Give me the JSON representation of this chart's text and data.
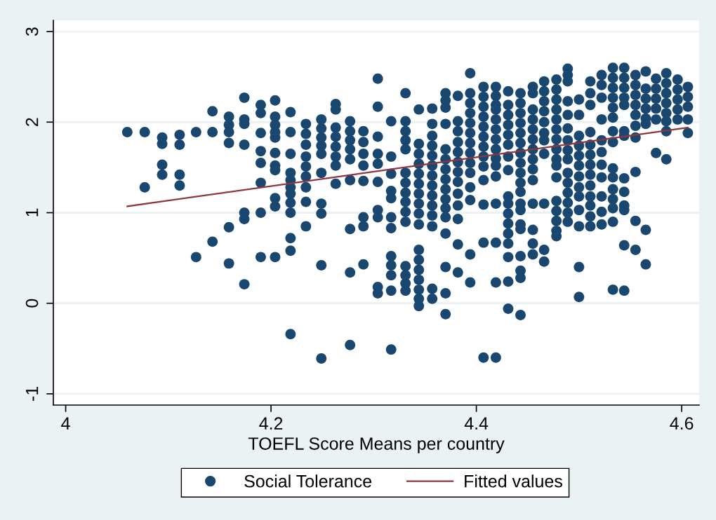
{
  "chart_data": {
    "type": "scatter",
    "xlabel": "TOEFL Score Means per country",
    "xlim": [
      3.988,
      4.617
    ],
    "ylim": [
      -1.124,
      3.124
    ],
    "xticks": [
      4,
      4.2,
      4.4,
      4.6
    ],
    "yticks": [
      -1,
      0,
      1,
      2,
      3
    ],
    "grid": "y",
    "legend": "bottom",
    "series": [
      {
        "name": "Social Tolerance",
        "color": "#1a476f",
        "marker": "circle",
        "x": [
          4.06,
          4.077,
          4.077,
          4.094,
          4.094,
          4.094,
          4.094,
          4.111,
          4.111,
          4.111,
          4.111,
          4.127,
          4.127,
          4.143,
          4.143,
          4.143,
          4.159,
          4.159,
          4.159,
          4.159,
          4.159,
          4.159,
          4.174,
          4.174,
          4.174,
          4.174,
          4.174,
          4.174,
          4.174,
          4.19,
          4.19,
          4.19,
          4.19,
          4.19,
          4.19,
          4.19,
          4.19,
          4.204,
          4.204,
          4.204,
          4.204,
          4.204,
          4.204,
          4.204,
          4.204,
          4.204,
          4.204,
          4.204,
          4.219,
          4.219,
          4.219,
          4.219,
          4.219,
          4.219,
          4.219,
          4.219,
          4.219,
          4.219,
          4.219,
          4.219,
          4.234,
          4.234,
          4.234,
          4.234,
          4.234,
          4.234,
          4.234,
          4.234,
          4.234,
          4.249,
          4.249,
          4.249,
          4.249,
          4.249,
          4.249,
          4.249,
          4.249,
          4.249,
          4.249,
          4.263,
          4.263,
          4.263,
          4.263,
          4.263,
          4.263,
          4.263,
          4.263,
          4.277,
          4.277,
          4.277,
          4.277,
          4.277,
          4.277,
          4.277,
          4.277,
          4.277,
          4.29,
          4.29,
          4.29,
          4.29,
          4.29,
          4.29,
          4.29,
          4.29,
          4.304,
          4.304,
          4.304,
          4.304,
          4.304,
          4.304,
          4.304,
          4.304,
          4.304,
          4.304,
          4.317,
          4.317,
          4.317,
          4.317,
          4.317,
          4.317,
          4.317,
          4.317,
          4.317,
          4.317,
          4.317,
          4.317,
          4.331,
          4.331,
          4.331,
          4.331,
          4.331,
          4.331,
          4.331,
          4.331,
          4.331,
          4.331,
          4.331,
          4.331,
          4.331,
          4.331,
          4.331,
          4.344,
          4.344,
          4.344,
          4.344,
          4.344,
          4.344,
          4.344,
          4.344,
          4.344,
          4.344,
          4.344,
          4.344,
          4.344,
          4.344,
          4.344,
          4.344,
          4.344,
          4.357,
          4.357,
          4.357,
          4.357,
          4.357,
          4.357,
          4.357,
          4.357,
          4.357,
          4.357,
          4.357,
          4.357,
          4.357,
          4.357,
          4.37,
          4.37,
          4.37,
          4.37,
          4.37,
          4.37,
          4.37,
          4.37,
          4.37,
          4.37,
          4.37,
          4.37,
          4.37,
          4.37,
          4.37,
          4.37,
          4.382,
          4.382,
          4.382,
          4.382,
          4.382,
          4.382,
          4.382,
          4.382,
          4.382,
          4.382,
          4.382,
          4.382,
          4.382,
          4.394,
          4.394,
          4.394,
          4.394,
          4.394,
          4.394,
          4.394,
          4.394,
          4.394,
          4.394,
          4.394,
          4.394,
          4.394,
          4.394,
          4.407,
          4.407,
          4.407,
          4.407,
          4.407,
          4.407,
          4.407,
          4.407,
          4.407,
          4.407,
          4.407,
          4.407,
          4.407,
          4.419,
          4.419,
          4.419,
          4.419,
          4.419,
          4.419,
          4.419,
          4.419,
          4.419,
          4.419,
          4.419,
          4.419,
          4.419,
          4.419,
          4.419,
          4.431,
          4.431,
          4.431,
          4.431,
          4.431,
          4.431,
          4.431,
          4.431,
          4.431,
          4.431,
          4.431,
          4.431,
          4.431,
          4.431,
          4.431,
          4.431,
          4.431,
          4.443,
          4.443,
          4.443,
          4.443,
          4.443,
          4.443,
          4.443,
          4.443,
          4.443,
          4.443,
          4.443,
          4.443,
          4.443,
          4.443,
          4.443,
          4.443,
          4.443,
          4.443,
          4.443,
          4.455,
          4.455,
          4.455,
          4.455,
          4.455,
          4.455,
          4.455,
          4.455,
          4.455,
          4.455,
          4.455,
          4.455,
          4.455,
          4.455,
          4.466,
          4.466,
          4.466,
          4.466,
          4.466,
          4.466,
          4.466,
          4.466,
          4.466,
          4.466,
          4.466,
          4.478,
          4.478,
          4.478,
          4.478,
          4.478,
          4.478,
          4.478,
          4.478,
          4.478,
          4.478,
          4.478,
          4.478,
          4.478,
          4.478,
          4.478,
          4.478,
          4.489,
          4.489,
          4.489,
          4.489,
          4.489,
          4.489,
          4.489,
          4.489,
          4.489,
          4.489,
          4.489,
          4.489,
          4.489,
          4.489,
          4.489,
          4.5,
          4.5,
          4.5,
          4.5,
          4.5,
          4.5,
          4.5,
          4.5,
          4.5,
          4.5,
          4.5,
          4.5,
          4.5,
          4.511,
          4.511,
          4.511,
          4.511,
          4.511,
          4.511,
          4.511,
          4.511,
          4.511,
          4.511,
          4.511,
          4.511,
          4.511,
          4.522,
          4.522,
          4.522,
          4.522,
          4.522,
          4.522,
          4.522,
          4.522,
          4.522,
          4.522,
          4.522,
          4.533,
          4.533,
          4.533,
          4.533,
          4.533,
          4.533,
          4.533,
          4.533,
          4.533,
          4.533,
          4.533,
          4.533,
          4.533,
          4.533,
          4.533,
          4.544,
          4.544,
          4.544,
          4.544,
          4.544,
          4.544,
          4.544,
          4.544,
          4.544,
          4.544,
          4.544,
          4.544,
          4.544,
          4.555,
          4.555,
          4.555,
          4.555,
          4.555,
          4.555,
          4.555,
          4.555,
          4.555,
          4.555,
          4.565,
          4.565,
          4.565,
          4.565,
          4.565,
          4.565,
          4.565,
          4.565,
          4.575,
          4.575,
          4.575,
          4.575,
          4.575,
          4.575,
          4.585,
          4.585,
          4.585,
          4.585,
          4.585,
          4.585,
          4.585,
          4.585,
          4.596,
          4.596,
          4.596,
          4.596,
          4.596,
          4.606,
          4.606,
          4.606,
          4.606,
          4.606
        ],
        "values": [
          1.89,
          1.89,
          1.28,
          1.83,
          1.76,
          1.53,
          1.42,
          1.86,
          1.75,
          1.42,
          1.3,
          1.89,
          0.51,
          2.12,
          1.89,
          0.68,
          2.06,
          1.97,
          1.89,
          1.77,
          0.84,
          0.44,
          2.27,
          2.03,
          1.98,
          1.75,
          1.0,
          0.93,
          0.21,
          2.19,
          2.1,
          1.88,
          1.68,
          1.55,
          1.33,
          1.0,
          0.51,
          2.24,
          2.06,
          1.97,
          1.89,
          1.83,
          1.66,
          1.52,
          1.47,
          1.16,
          1.07,
          0.51,
          2.11,
          1.89,
          1.65,
          1.44,
          1.36,
          1.28,
          1.21,
          1.11,
          1.0,
          0.72,
          0.58,
          -0.34,
          1.98,
          1.87,
          1.75,
          1.62,
          1.51,
          1.4,
          1.28,
          1.12,
          0.85,
          2.03,
          1.93,
          1.83,
          1.74,
          1.65,
          1.44,
          1.1,
          0.99,
          0.42,
          -0.61,
          2.2,
          2.14,
          1.94,
          1.84,
          1.73,
          1.62,
          1.52,
          1.32,
          2.01,
          1.9,
          1.8,
          1.7,
          1.59,
          1.36,
          0.82,
          0.34,
          -0.46,
          1.9,
          1.78,
          1.65,
          1.52,
          1.35,
          0.95,
          0.85,
          0.43,
          2.48,
          2.17,
          1.84,
          1.65,
          1.54,
          1.34,
          1.03,
          0.95,
          0.18,
          0.11,
          2.01,
          1.62,
          1.43,
          1.24,
          1.16,
          0.95,
          0.83,
          0.52,
          0.42,
          0.31,
          0.14,
          -0.51,
          2.32,
          2.01,
          1.9,
          1.8,
          1.7,
          1.44,
          1.33,
          1.22,
          1.12,
          1.01,
          0.9,
          0.41,
          0.31,
          0.22,
          0.14,
          2.14,
          1.76,
          1.65,
          1.54,
          1.43,
          1.32,
          1.21,
          1.1,
          0.99,
          0.87,
          0.59,
          0.48,
          0.37,
          0.26,
          0.15,
          0.05,
          -0.03,
          2.15,
          1.98,
          1.85,
          1.74,
          1.63,
          1.52,
          1.41,
          1.3,
          1.19,
          1.08,
          0.97,
          0.85,
          0.16,
          0.05,
          2.32,
          2.24,
          2.16,
          1.98,
          1.7,
          1.59,
          1.48,
          1.37,
          1.26,
          1.15,
          1.05,
          0.95,
          0.77,
          0.4,
          0.11,
          -0.12,
          2.29,
          2.01,
          1.9,
          1.78,
          1.67,
          1.56,
          1.45,
          1.34,
          1.21,
          1.08,
          0.93,
          0.65,
          0.34,
          2.54,
          2.32,
          2.21,
          2.1,
          1.99,
          1.88,
          1.77,
          1.66,
          1.55,
          1.44,
          1.28,
          1.14,
          0.54,
          0.23,
          2.39,
          2.28,
          2.17,
          2.06,
          1.95,
          1.84,
          1.73,
          1.62,
          1.51,
          1.36,
          1.09,
          0.67,
          -0.6,
          2.39,
          2.29,
          2.19,
          2.14,
          2.03,
          1.92,
          1.81,
          1.7,
          1.6,
          1.52,
          1.4,
          1.1,
          0.67,
          0.23,
          -0.6,
          2.34,
          2.19,
          2.08,
          1.97,
          1.86,
          1.75,
          1.62,
          1.47,
          1.18,
          1.1,
          0.99,
          0.88,
          0.77,
          0.66,
          0.51,
          0.24,
          -0.06,
          2.32,
          2.21,
          2.1,
          1.99,
          1.88,
          1.77,
          1.66,
          1.55,
          1.44,
          1.33,
          1.23,
          1.1,
          1.03,
          0.87,
          0.82,
          0.52,
          0.36,
          0.28,
          -0.13,
          2.39,
          2.32,
          2.14,
          2.03,
          1.92,
          1.81,
          1.7,
          1.59,
          1.48,
          1.36,
          1.1,
          0.81,
          0.66,
          0.54,
          2.45,
          2.34,
          2.23,
          2.12,
          2.0,
          1.88,
          1.8,
          1.65,
          1.1,
          0.59,
          0.46,
          2.47,
          2.36,
          2.25,
          2.14,
          2.03,
          1.92,
          1.81,
          1.7,
          1.59,
          1.52,
          1.39,
          1.13,
          1.02,
          0.91,
          0.8,
          0.74,
          2.59,
          2.52,
          2.45,
          2.23,
          2.08,
          1.93,
          1.8,
          1.69,
          1.59,
          1.44,
          1.33,
          1.22,
          1.11,
          1.0,
          0.9,
          2.25,
          2.08,
          1.85,
          1.74,
          1.63,
          1.52,
          1.4,
          1.28,
          1.18,
          1.03,
          0.85,
          0.4,
          0.07,
          2.45,
          2.32,
          2.19,
          1.89,
          1.75,
          1.64,
          1.53,
          1.42,
          1.3,
          1.18,
          1.08,
          0.96,
          0.85,
          2.52,
          2.41,
          2.27,
          2.03,
          1.8,
          1.67,
          1.53,
          1.39,
          1.18,
          1.01,
          0.87,
          2.6,
          2.49,
          2.38,
          2.27,
          2.16,
          2.05,
          1.9,
          1.78,
          1.49,
          1.39,
          1.26,
          1.15,
          1.05,
          0.9,
          0.15,
          2.6,
          2.49,
          2.38,
          2.27,
          2.19,
          1.9,
          1.85,
          1.38,
          1.23,
          1.08,
          1.03,
          0.64,
          0.14,
          2.52,
          2.41,
          2.3,
          2.19,
          2.08,
          1.96,
          1.83,
          1.45,
          0.91,
          0.59,
          2.56,
          2.37,
          2.26,
          2.15,
          2.04,
          1.98,
          0.81,
          0.43,
          2.48,
          2.37,
          2.26,
          2.15,
          2.03,
          1.66,
          2.54,
          2.43,
          2.32,
          2.21,
          2.1,
          2.01,
          1.9,
          1.59,
          2.47,
          2.36,
          2.25,
          2.14,
          2.03,
          2.39,
          2.28,
          2.17,
          2.03,
          1.88
        ]
      },
      {
        "type": "line",
        "name": "Fitted values",
        "color": "#90353b",
        "x": [
          4.06,
          4.606
        ],
        "values": [
          1.07,
          1.94
        ]
      }
    ]
  }
}
